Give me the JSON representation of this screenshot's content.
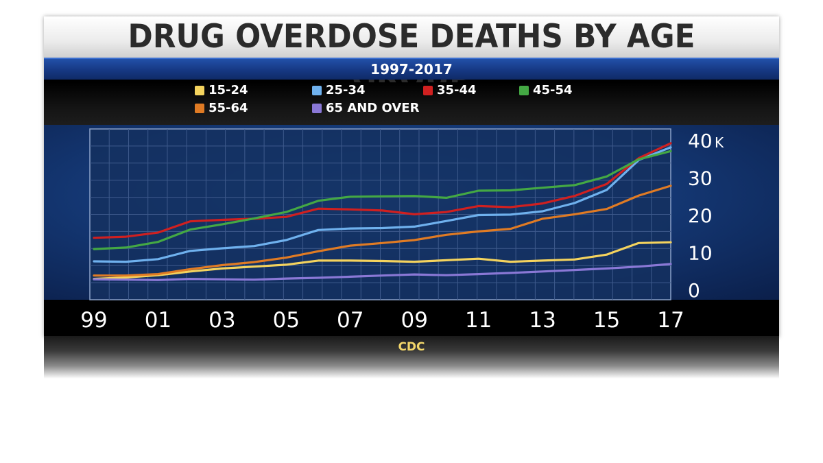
{
  "title": "DRUG OVERDOSE DEATHS BY AGE GROUP",
  "subtitle": "1997-2017",
  "source": "CDC",
  "chart_data": {
    "type": "line",
    "title": "DRUG OVERDOSE DEATHS BY AGE GROUP",
    "subtitle": "1997-2017",
    "y_unit": "K",
    "xlim": [
      1999,
      2017
    ],
    "ylim": [
      0,
      40
    ],
    "grid": true,
    "legend_position": "top",
    "x": [
      1999,
      2000,
      2001,
      2002,
      2003,
      2004,
      2005,
      2006,
      2007,
      2008,
      2009,
      2010,
      2011,
      2012,
      2013,
      2014,
      2015,
      2016,
      2017
    ],
    "x_tick_labels": [
      {
        "value": 1999,
        "label": "99"
      },
      {
        "value": 2001,
        "label": "01"
      },
      {
        "value": 2003,
        "label": "03"
      },
      {
        "value": 2005,
        "label": "05"
      },
      {
        "value": 2007,
        "label": "07"
      },
      {
        "value": 2009,
        "label": "09"
      },
      {
        "value": 2011,
        "label": "11"
      },
      {
        "value": 2013,
        "label": "13"
      },
      {
        "value": 2015,
        "label": "15"
      },
      {
        "value": 2017,
        "label": "17"
      }
    ],
    "y_tick_labels": [
      {
        "value": 0,
        "label": "0"
      },
      {
        "value": 10,
        "label": "10"
      },
      {
        "value": 20,
        "label": "20"
      },
      {
        "value": 30,
        "label": "30"
      },
      {
        "value": 40,
        "label": "40"
      }
    ],
    "series": [
      {
        "name": "15-24",
        "color": "#f4d35e",
        "values": [
          3.0,
          3.4,
          4.0,
          5.0,
          5.8,
          6.3,
          6.8,
          7.9,
          7.9,
          7.8,
          7.6,
          8.0,
          8.4,
          7.6,
          7.9,
          8.2,
          9.5,
          12.6,
          12.8
        ]
      },
      {
        "name": "25-34",
        "color": "#6fb1ee",
        "values": [
          7.7,
          7.6,
          8.3,
          10.5,
          11.2,
          11.8,
          13.4,
          16.1,
          16.5,
          16.6,
          17.0,
          18.5,
          20.1,
          20.2,
          21.1,
          23.3,
          26.8,
          34.8,
          38.2
        ]
      },
      {
        "name": "35-44",
        "color": "#d02020",
        "values": [
          14.0,
          14.3,
          15.4,
          18.4,
          18.8,
          19.1,
          19.6,
          21.8,
          21.6,
          21.3,
          20.3,
          20.9,
          22.5,
          22.2,
          23.2,
          25.2,
          28.4,
          35.3,
          39.3
        ]
      },
      {
        "name": "45-54",
        "color": "#44a844",
        "values": [
          11.0,
          11.4,
          12.9,
          16.2,
          17.6,
          19.2,
          20.9,
          23.9,
          25.0,
          25.1,
          25.2,
          24.7,
          26.6,
          26.7,
          27.4,
          28.1,
          30.4,
          35.0,
          37.2
        ]
      },
      {
        "name": "55-64",
        "color": "#e07b24",
        "values": [
          3.9,
          3.9,
          4.3,
          5.6,
          6.7,
          7.5,
          8.7,
          10.4,
          11.9,
          12.6,
          13.4,
          14.8,
          15.7,
          16.4,
          19.1,
          20.3,
          21.7,
          25.3,
          27.9
        ]
      },
      {
        "name": "65 AND OVER",
        "color": "#8a78d6",
        "values": [
          2.9,
          2.8,
          2.7,
          3.0,
          2.9,
          2.8,
          3.1,
          3.3,
          3.6,
          3.9,
          4.2,
          4.0,
          4.3,
          4.6,
          5.0,
          5.4,
          5.8,
          6.3,
          7.0
        ]
      }
    ]
  }
}
